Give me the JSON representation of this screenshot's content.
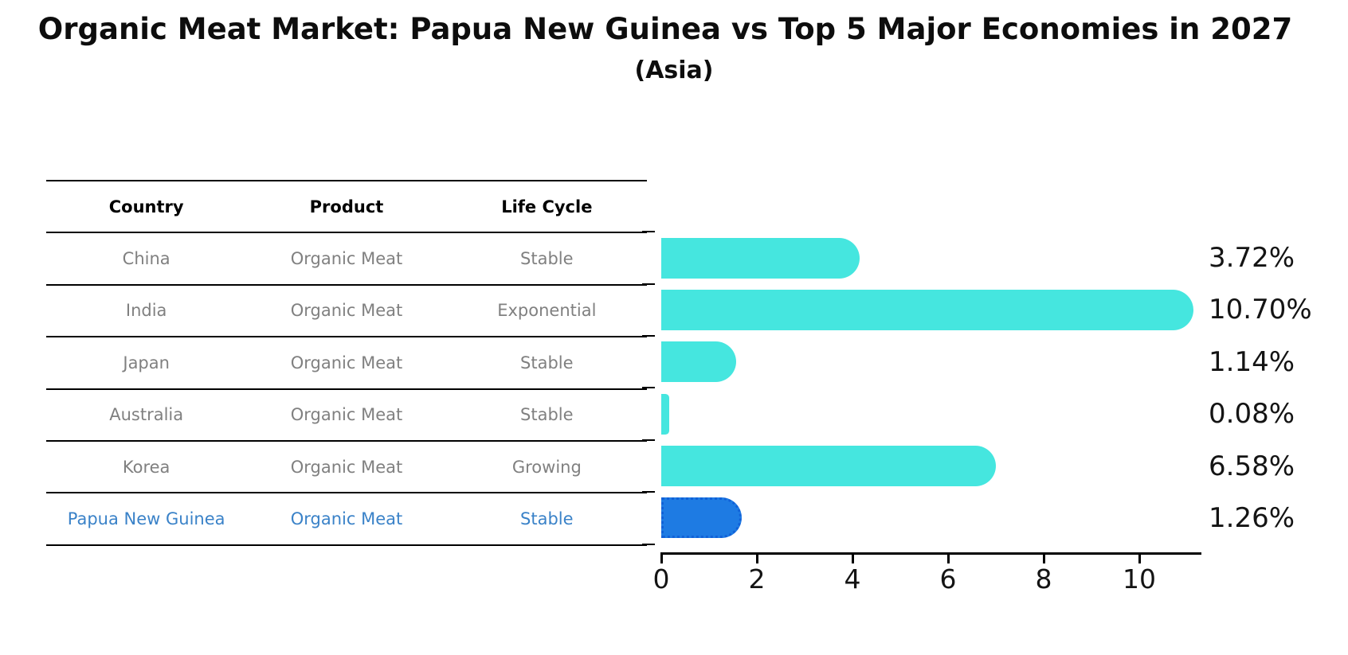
{
  "title": "Organic Meat Market: Papua New Guinea vs Top 5 Major Economies in 2027",
  "subtitle": "(Asia)",
  "table": {
    "headers": [
      "Country",
      "Product",
      "Life Cycle"
    ],
    "rows": [
      {
        "country": "China",
        "product": "Organic Meat",
        "life_cycle": "Stable",
        "highlight": false
      },
      {
        "country": "India",
        "product": "Organic Meat",
        "life_cycle": "Exponential",
        "highlight": false
      },
      {
        "country": "Japan",
        "product": "Organic Meat",
        "life_cycle": "Stable",
        "highlight": false
      },
      {
        "country": "Australia",
        "product": "Organic Meat",
        "life_cycle": "Stable",
        "highlight": false
      },
      {
        "country": "Korea",
        "product": "Organic Meat",
        "life_cycle": "Growing",
        "highlight": false
      },
      {
        "country": "Papua New Guinea",
        "product": "Organic Meat",
        "life_cycle": "Stable",
        "highlight": true
      }
    ]
  },
  "chart_data": {
    "type": "bar",
    "orientation": "horizontal",
    "title": "Organic Meat Market: Papua New Guinea vs Top 5 Major Economies in 2027",
    "subtitle": "(Asia)",
    "categories": [
      "China",
      "India",
      "Japan",
      "Australia",
      "Korea",
      "Papua New Guinea"
    ],
    "values": [
      3.72,
      10.7,
      1.14,
      0.08,
      6.58,
      1.26
    ],
    "value_labels": [
      "3.72%",
      "10.70%",
      "1.14%",
      "0.08%",
      "6.58%",
      "1.26%"
    ],
    "unit": "percent",
    "x_ticks": [
      0,
      2,
      4,
      6,
      8,
      10
    ],
    "xlim": [
      0,
      11.3
    ],
    "grid": false,
    "legend": false,
    "bar_color": "#45E6DF",
    "highlight_color": "#1E7BE3",
    "highlight_edge_color": "#1161D8",
    "highlight_index": 5,
    "highlight_category": "Papua New Guinea"
  },
  "colors": {
    "background": "#ffffff",
    "text_primary": "#0d0d0d",
    "text_muted": "#808080",
    "text_highlight": "#3A82C8",
    "axis": "#000000"
  }
}
